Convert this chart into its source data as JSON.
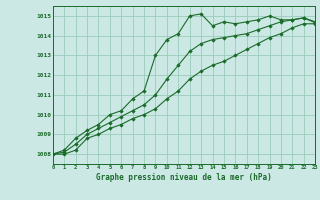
{
  "title": "Graphe pression niveau de la mer (hPa)",
  "bg_color": "#cce8e4",
  "grid_color": "#99ccbb",
  "line_color": "#1a6b2a",
  "x_min": 0,
  "x_max": 23,
  "y_min": 1007.5,
  "y_max": 1015.5,
  "x": [
    0,
    1,
    2,
    3,
    4,
    5,
    6,
    7,
    8,
    9,
    10,
    11,
    12,
    13,
    14,
    15,
    16,
    17,
    18,
    19,
    20,
    21,
    22,
    23
  ],
  "values1": [
    1008.0,
    1008.2,
    1008.8,
    1009.2,
    1009.5,
    1010.0,
    1010.2,
    1010.8,
    1011.2,
    1013.0,
    1013.8,
    1014.1,
    1015.0,
    1015.1,
    1014.5,
    1014.7,
    1014.6,
    1014.7,
    1014.8,
    1015.0,
    1014.8,
    1014.8,
    1014.9,
    1014.7
  ],
  "values2": [
    1008.0,
    1008.1,
    1008.5,
    1009.0,
    1009.3,
    1009.6,
    1009.9,
    1010.2,
    1010.5,
    1011.0,
    1011.8,
    1012.5,
    1013.2,
    1013.6,
    1013.8,
    1013.9,
    1014.0,
    1014.1,
    1014.3,
    1014.5,
    1014.7,
    1014.8,
    1014.9,
    1014.65
  ],
  "values3": [
    1008.0,
    1008.0,
    1008.2,
    1008.8,
    1009.0,
    1009.3,
    1009.5,
    1009.8,
    1010.0,
    1010.3,
    1010.8,
    1011.2,
    1011.8,
    1012.2,
    1012.5,
    1012.7,
    1013.0,
    1013.3,
    1013.6,
    1013.9,
    1014.1,
    1014.4,
    1014.6,
    1014.6
  ]
}
